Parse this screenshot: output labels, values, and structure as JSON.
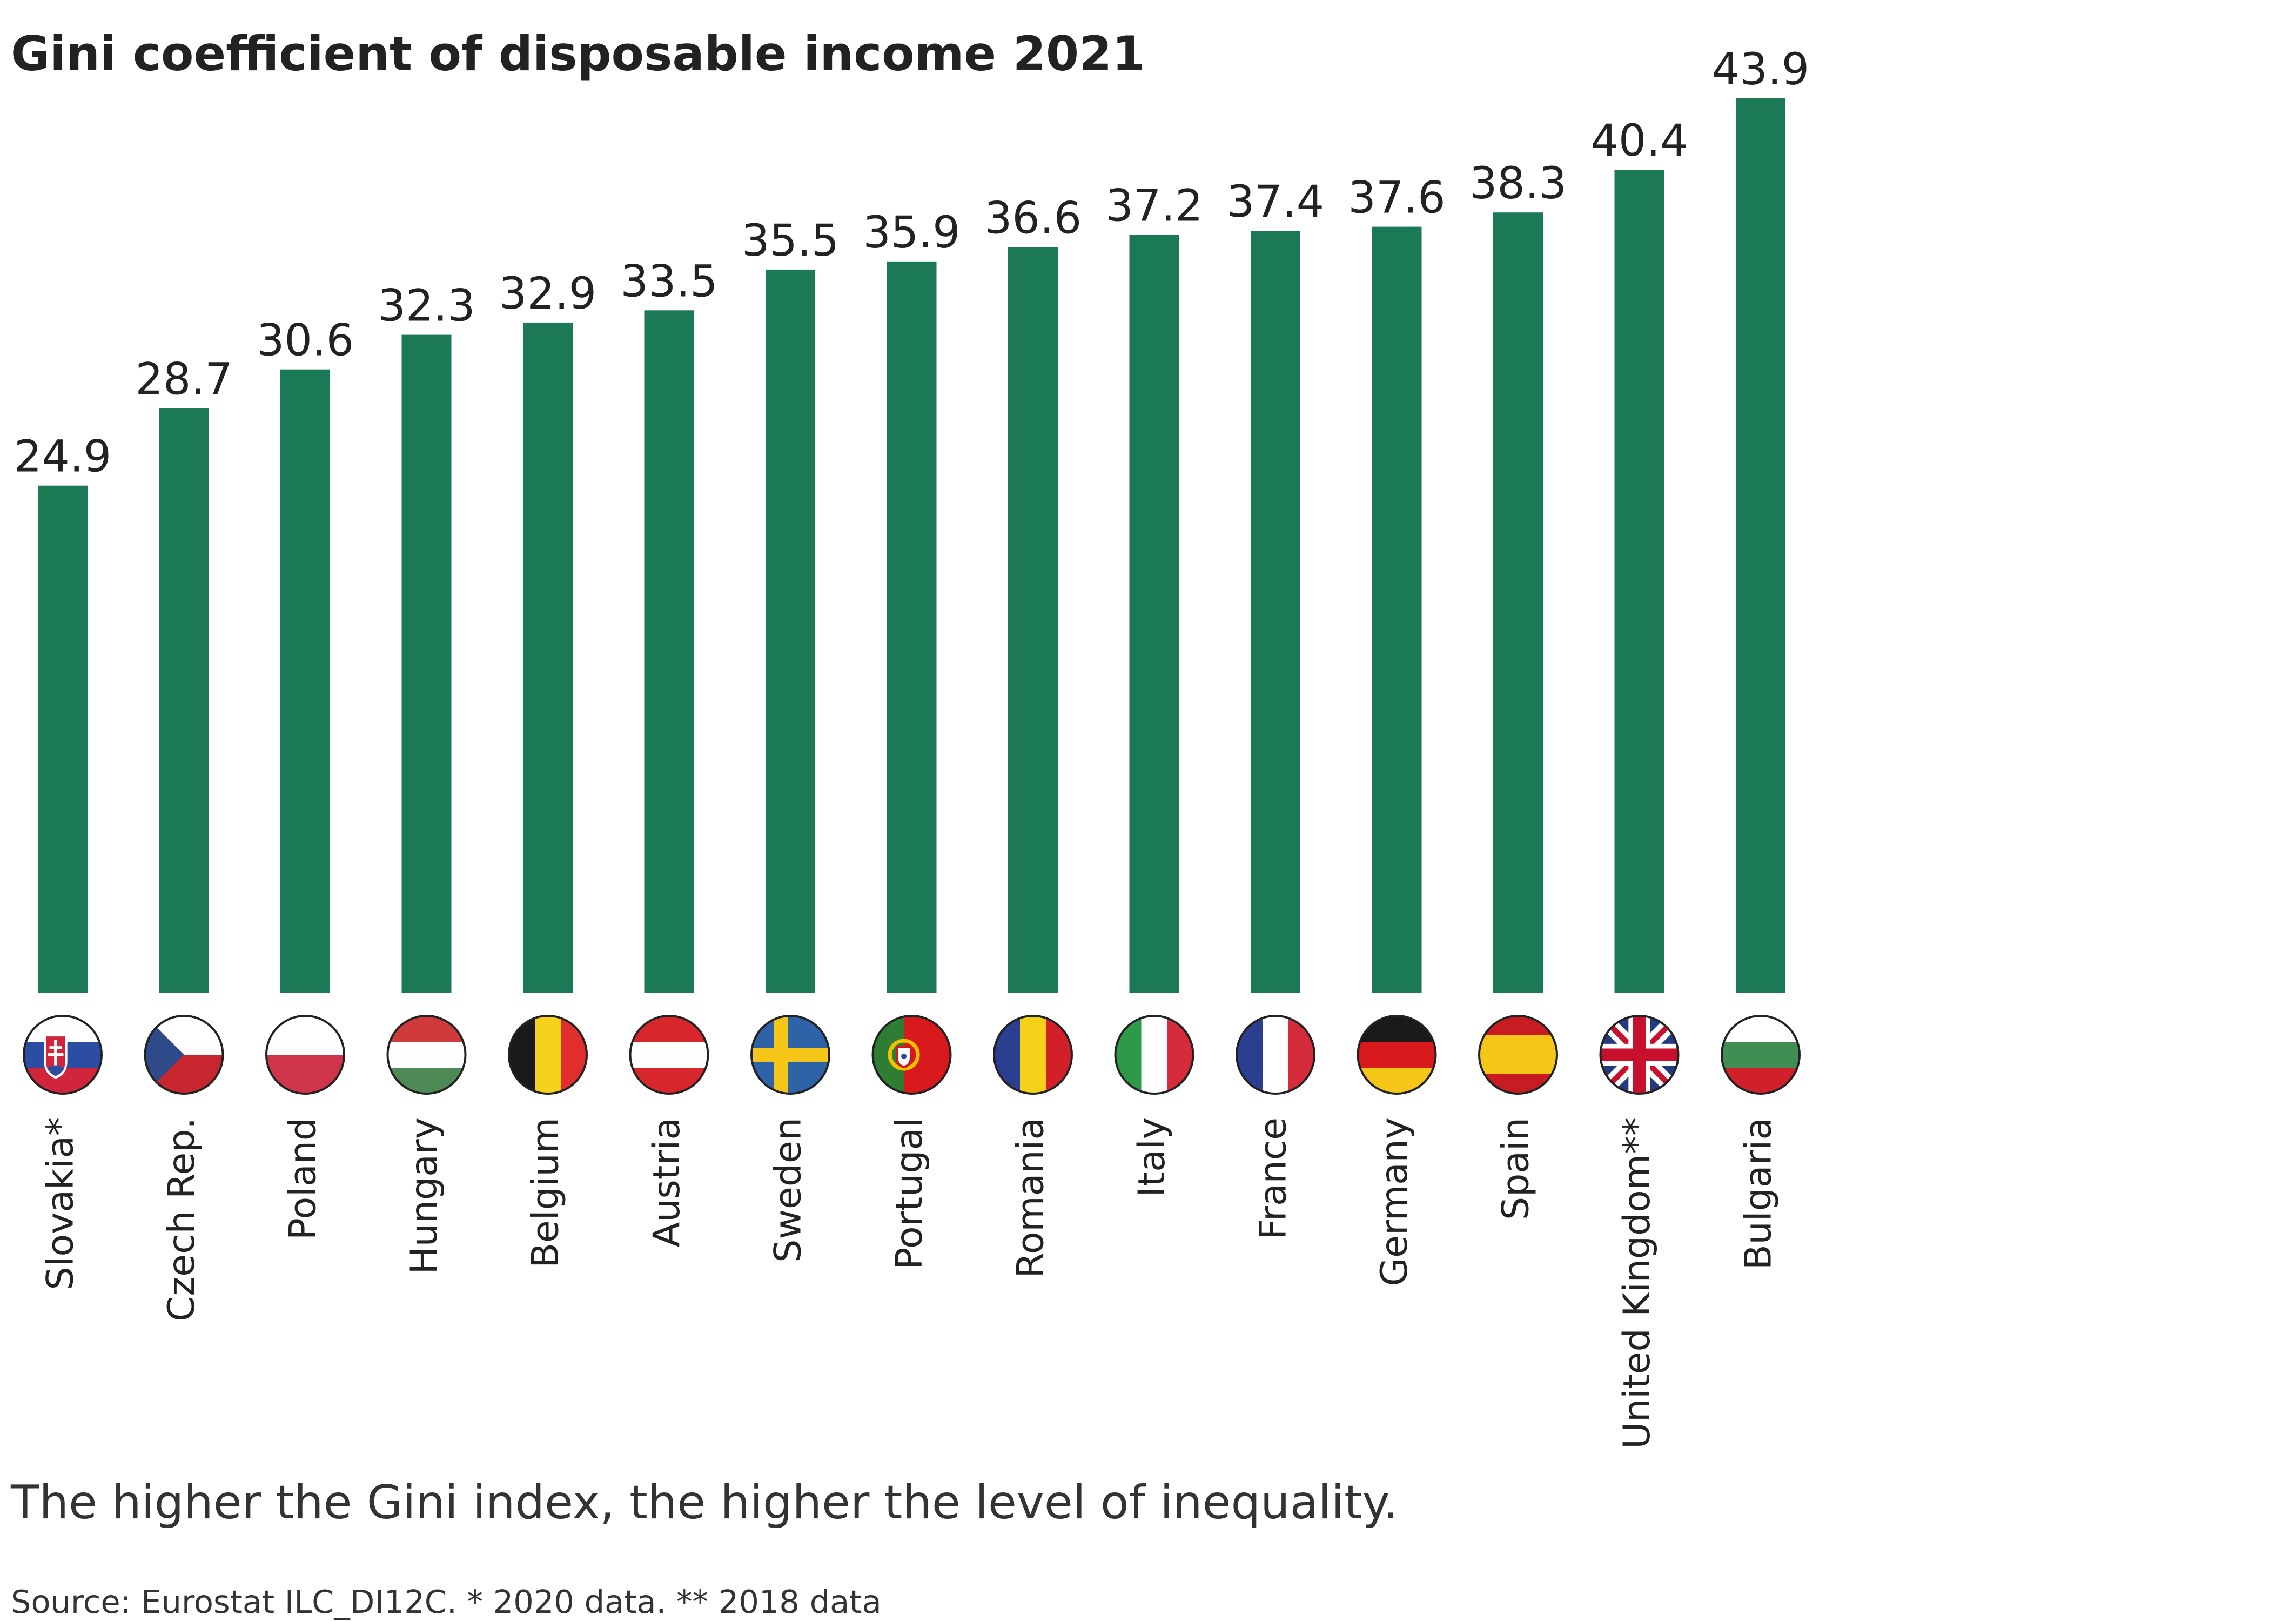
{
  "chart_data": {
    "type": "bar",
    "title": "Gini coefficient of disposable income 2021",
    "categories": [
      "Slovakia*",
      "Czech Rep.",
      "Poland",
      "Hungary",
      "Belgium",
      "Austria",
      "Sweden",
      "Portugal",
      "Romania",
      "Italy",
      "France",
      "Germany",
      "Spain",
      "United Kingdom**",
      "Bulgaria"
    ],
    "values": [
      24.9,
      28.7,
      30.6,
      32.3,
      32.9,
      33.5,
      35.5,
      35.9,
      36.6,
      37.2,
      37.4,
      37.6,
      38.3,
      40.4,
      43.9
    ],
    "value_labels": [
      "24.9",
      "28.7",
      "30.6",
      "32.3",
      "32.9",
      "33.5",
      "35.5",
      "35.9",
      "36.6",
      "37.2",
      "37.4",
      "37.6",
      "38.3",
      "40.4",
      "43.9"
    ],
    "flags": [
      "slovakia-flag-icon",
      "czech-flag-icon",
      "poland-flag-icon",
      "hungary-flag-icon",
      "belgium-flag-icon",
      "austria-flag-icon",
      "sweden-flag-icon",
      "portugal-flag-icon",
      "romania-flag-icon",
      "italy-flag-icon",
      "france-flag-icon",
      "germany-flag-icon",
      "spain-flag-icon",
      "uk-flag-icon",
      "bulgaria-flag-icon"
    ],
    "ylim": [
      0,
      43.9
    ],
    "xlabel": "",
    "ylabel": "",
    "grid": false,
    "bar_color": "#1b7a55",
    "subtitle": "The higher the Gini index, the higher the level of inequality.",
    "source": "Source: Eurostat ILC_DI12C. * 2020 data. ** 2018 data"
  }
}
